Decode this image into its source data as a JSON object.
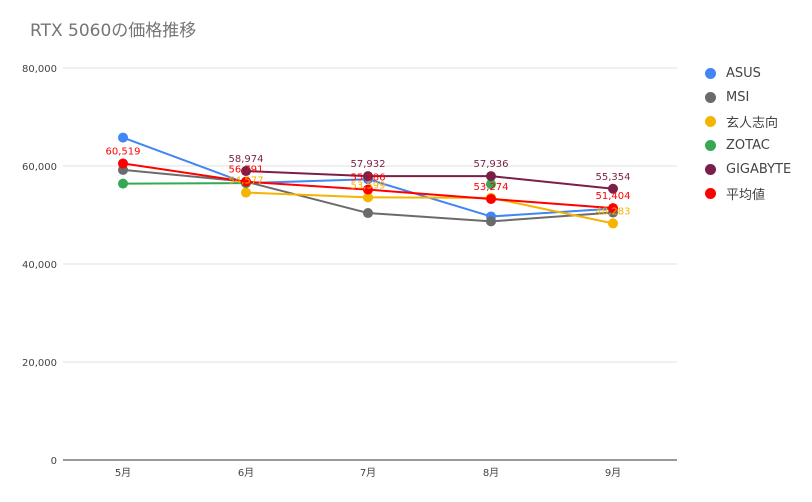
{
  "chart_data": {
    "type": "line",
    "title": "RTX 5060の価格推移",
    "categories": [
      "5月",
      "6月",
      "7月",
      "8月",
      "9月"
    ],
    "ylim": [
      0,
      80000
    ],
    "yticks": [
      0,
      20000,
      40000,
      60000,
      80000
    ],
    "ytick_labels": [
      "0",
      "20,000",
      "40,000",
      "60,000",
      "80,000"
    ],
    "grid": true,
    "legend_position": "right",
    "series": [
      {
        "name": "ASUS",
        "color": "#4285F4",
        "values": [
          65800,
          56500,
          57300,
          49700,
          51300
        ]
      },
      {
        "name": "MSI",
        "color": "#6B6B6B",
        "values": [
          59200,
          56800,
          50400,
          48700,
          50500
        ]
      },
      {
        "name": "玄人志向",
        "color": "#F4B400",
        "values": [
          null,
          54577,
          53599,
          53500,
          48283
        ],
        "labels": [
          "",
          "54,577",
          "53,599",
          "",
          "48,283"
        ]
      },
      {
        "name": "ZOTAC",
        "color": "#34A853",
        "values": [
          56400,
          56500,
          null,
          56300,
          null
        ]
      },
      {
        "name": "GIGABYTE",
        "color": "#7B1F48",
        "values": [
          null,
          58974,
          57932,
          57936,
          55354
        ],
        "labels": [
          "",
          "58,974",
          "57,932",
          "57,936",
          "55,354"
        ]
      },
      {
        "name": "平均値",
        "color": "#FF0000",
        "values": [
          60519,
          56791,
          55186,
          53274,
          51404
        ],
        "labels": [
          "60,519",
          "56,791",
          "55,186",
          "53,274",
          "51,404"
        ]
      }
    ]
  }
}
